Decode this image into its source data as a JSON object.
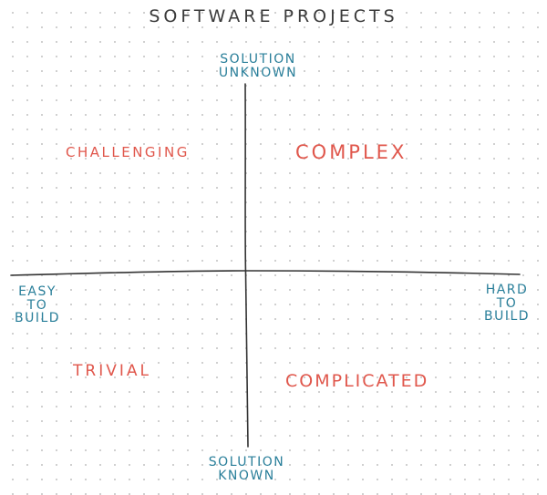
{
  "title": "SOFTWARE PROJECTS",
  "axes": {
    "top_line1": "SOLUTION",
    "top_line2": "UNKNOWN",
    "bottom_line1": "SOLUTION",
    "bottom_line2": "KNOWN",
    "left_line1": "EASY",
    "left_line2": "TO",
    "left_line3": "BUILD",
    "right_line1": "HARD",
    "right_line2": "TO",
    "right_line3": "BUILD"
  },
  "quadrants": {
    "top_left": "CHALLENGING",
    "top_right": "COMPLEX",
    "bottom_left": "TRIVIAL",
    "bottom_right": "COMPLICATED"
  },
  "colors": {
    "axis_text": "#2a7f9a",
    "quadrant_text": "#e0574c",
    "title_text": "#3b3b3b",
    "axis_line": "#333333"
  }
}
